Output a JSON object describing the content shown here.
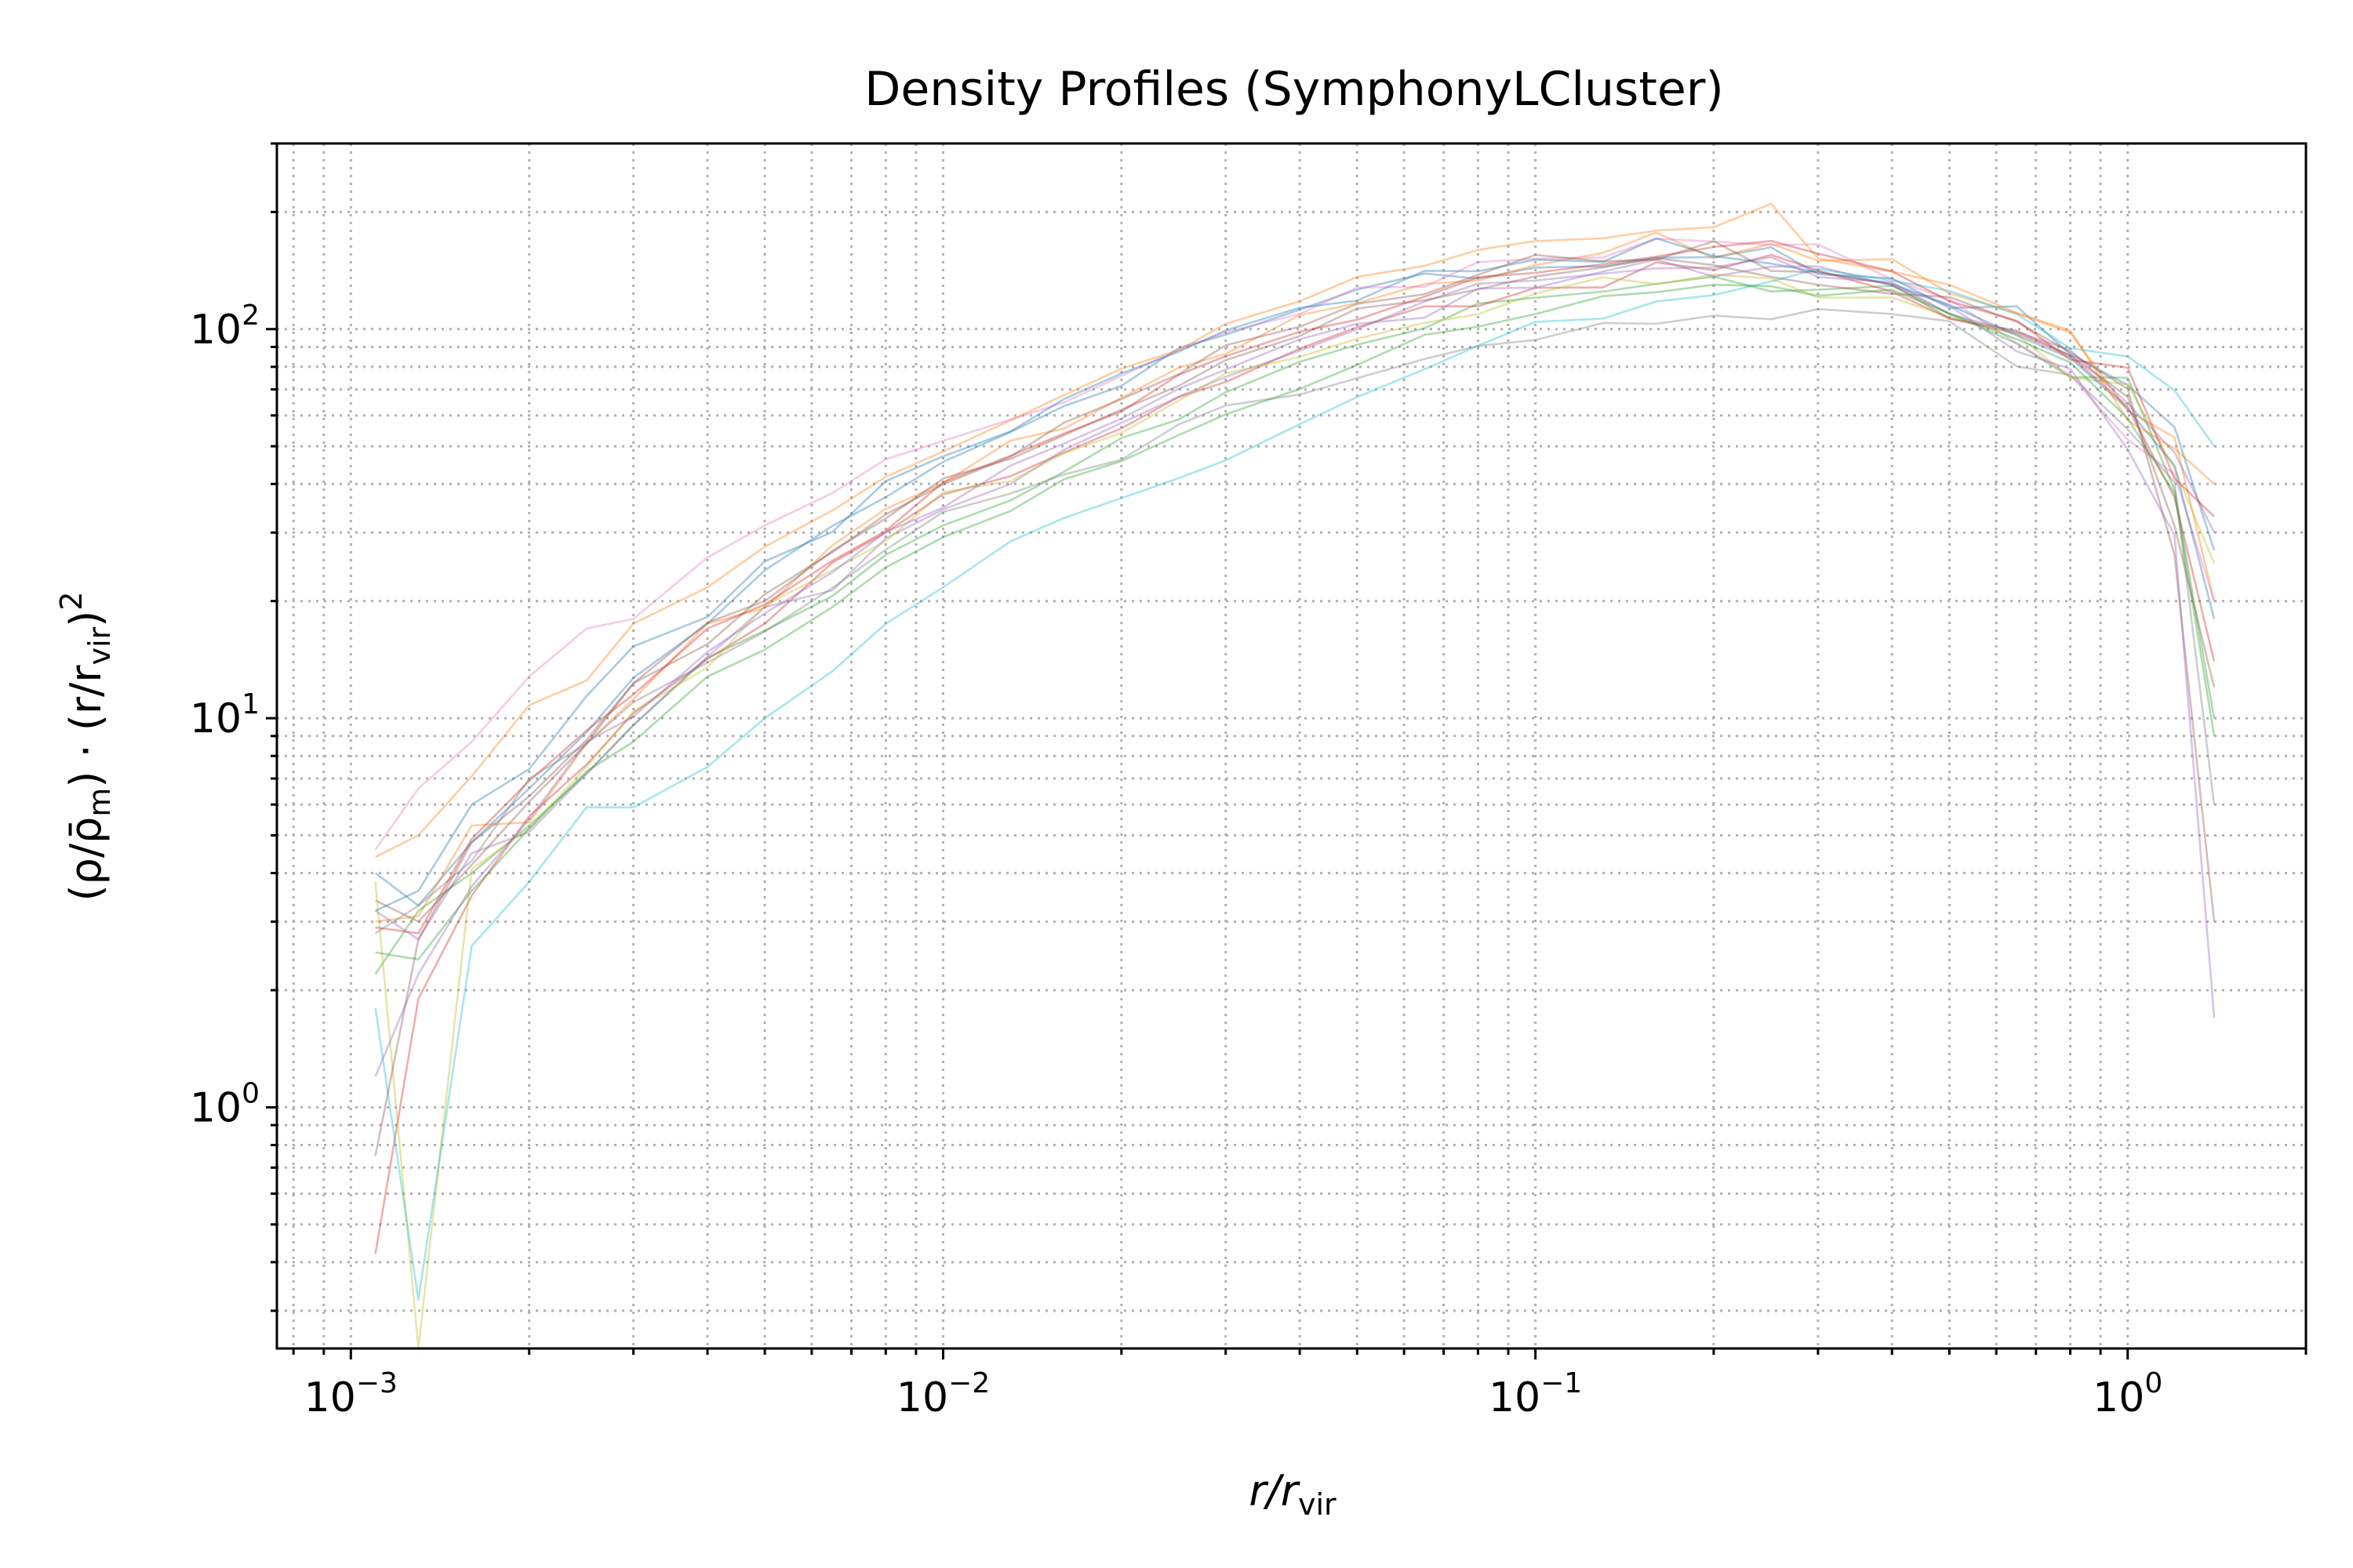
{
  "chart_data": {
    "type": "line",
    "title": "Density Profiles (SymphonyLCluster)",
    "xlabel": "r/r_vir",
    "xlabel_main": "r/r",
    "xlabel_sub": "vir",
    "ylabel": "(ρ/ρ̄_m)·(r/r_vir)²",
    "ylabel_parts": {
      "open": "(ρ/ρ̄",
      "m_sub": "m",
      "mid": ") · (r/r",
      "vir_sub": "vir",
      "close": ")",
      "sq": "2"
    },
    "xscale": "log",
    "yscale": "log",
    "xlim": [
      0.00075,
      2.0
    ],
    "ylim": [
      0.24,
      300
    ],
    "grid": true,
    "xticks": [
      {
        "value": 0.001,
        "base": "10",
        "exp": "−3"
      },
      {
        "value": 0.01,
        "base": "10",
        "exp": "−2"
      },
      {
        "value": 0.1,
        "base": "10",
        "exp": "−1"
      },
      {
        "value": 1,
        "base": "10",
        "exp": "0"
      }
    ],
    "yticks": [
      {
        "value": 1,
        "base": "10",
        "exp": "0"
      },
      {
        "value": 10,
        "base": "10",
        "exp": "1"
      },
      {
        "value": 100,
        "base": "10",
        "exp": "2"
      }
    ],
    "colors": [
      "#1f77b4",
      "#ff7f0e",
      "#2ca02c",
      "#d62728",
      "#9467bd",
      "#8c564b",
      "#e377c2",
      "#7f7f7f",
      "#bcbd22",
      "#17becf"
    ],
    "series": [
      {
        "x": [
          0.0011,
          0.0013,
          0.0016,
          0.002,
          0.0025,
          0.003,
          0.004,
          0.005,
          0.0065,
          0.008,
          0.01,
          0.013,
          0.016,
          0.02,
          0.025,
          0.03,
          0.04,
          0.05,
          0.065,
          0.08,
          0.1,
          0.13,
          0.16,
          0.2,
          0.25,
          0.3,
          0.4,
          0.5,
          0.65,
          0.8,
          1.0,
          1.2,
          1.4
        ],
        "y": [
          4.0,
          3.3,
          4.8,
          6.6,
          9.2,
          12.7,
          17.5,
          24.0,
          31.2,
          37.0,
          45.6,
          54.4,
          63.4,
          71.5,
          89.4,
          96.7,
          112.2,
          126.4,
          139.0,
          134.8,
          144.0,
          145.0,
          152.6,
          153.0,
          162.2,
          138.4,
          135.1,
          113.4,
          114.4,
          86.2,
          71.8,
          56.0,
          27.0
        ]
      },
      {
        "x": [
          0.0011,
          0.0013,
          0.0016,
          0.002,
          0.0025,
          0.003,
          0.004,
          0.005,
          0.0065,
          0.008,
          0.01,
          0.013,
          0.016,
          0.02,
          0.025,
          0.03,
          0.04,
          0.05,
          0.065,
          0.08,
          0.1,
          0.13,
          0.16,
          0.2,
          0.25,
          0.3,
          0.4,
          0.5,
          0.65,
          0.8,
          1.0,
          1.2,
          1.4
        ],
        "y": [
          3.0,
          3.1,
          5.3,
          5.4,
          8.6,
          11.2,
          17.5,
          19.2,
          27.8,
          34.5,
          40.2,
          51.7,
          55.5,
          66.6,
          79.6,
          86.4,
          108.6,
          116.6,
          130.7,
          133.2,
          146.1,
          157.0,
          177.0,
          152.2,
          165.9,
          149.8,
          151.3,
          123.7,
          109.7,
          98.0,
          61.7,
          52.7,
          20.0
        ]
      },
      {
        "x": [
          0.0011,
          0.0013,
          0.0016,
          0.002,
          0.0025,
          0.003,
          0.004,
          0.005,
          0.0065,
          0.008,
          0.01,
          0.013,
          0.016,
          0.02,
          0.025,
          0.03,
          0.04,
          0.05,
          0.065,
          0.08,
          0.1,
          0.13,
          0.16,
          0.2,
          0.25,
          0.3,
          0.4,
          0.5,
          0.65,
          0.8,
          1.0,
          1.2,
          1.4
        ],
        "y": [
          2.2,
          3.2,
          4.0,
          5.3,
          7.2,
          9.6,
          14.3,
          16.8,
          20.6,
          26.3,
          31.3,
          36.3,
          43.0,
          52.5,
          58.6,
          68.8,
          82.4,
          91.2,
          100.5,
          116.3,
          120.4,
          124.9,
          130.7,
          136.4,
          125.0,
          126.3,
          129.2,
          109.7,
          91.8,
          75.2,
          75.0,
          38.6,
          10.0
        ]
      },
      {
        "x": [
          0.0011,
          0.0013,
          0.0016,
          0.002,
          0.0025,
          0.003,
          0.004,
          0.005,
          0.0065,
          0.008,
          0.01,
          0.013,
          0.016,
          0.02,
          0.025,
          0.03,
          0.04,
          0.05,
          0.065,
          0.08,
          0.1,
          0.13,
          0.16,
          0.2,
          0.25,
          0.3,
          0.4,
          0.5,
          0.65,
          0.8,
          1.0,
          1.2,
          1.4
        ],
        "y": [
          0.42,
          1.9,
          3.5,
          5.6,
          7.6,
          10.3,
          14.2,
          17.5,
          25.1,
          30.0,
          37.6,
          41.9,
          48.2,
          55.6,
          66.9,
          73.1,
          89.1,
          101.1,
          114.4,
          114.5,
          127.7,
          128.0,
          148.4,
          141.8,
          155.2,
          141.5,
          124.8,
          106.4,
          97.6,
          85.5,
          63.2,
          36.9,
          14.0
        ]
      },
      {
        "x": [
          0.0011,
          0.0013,
          0.0016,
          0.002,
          0.0025,
          0.003,
          0.004,
          0.005,
          0.0065,
          0.008,
          0.01,
          0.013,
          0.016,
          0.02,
          0.025,
          0.03,
          0.04,
          0.05,
          0.065,
          0.08,
          0.1,
          0.13,
          0.16,
          0.2,
          0.25,
          0.3,
          0.4,
          0.5,
          0.65,
          0.8,
          1.0,
          1.2,
          1.4
        ],
        "y": [
          3.2,
          2.7,
          4.5,
          5.1,
          7.2,
          9.6,
          14.4,
          19.3,
          21.3,
          29.0,
          34.4,
          40.0,
          49.0,
          57.4,
          67.0,
          75.4,
          88.0,
          99.9,
          117.7,
          130.8,
          133.3,
          138.9,
          143.3,
          144.0,
          153.1,
          136.1,
          132.0,
          109.3,
          98.3,
          88.4,
          64.4,
          48.2,
          30.0
        ]
      },
      {
        "x": [
          0.0011,
          0.0013,
          0.0016,
          0.002,
          0.0025,
          0.003,
          0.004,
          0.005,
          0.0065,
          0.008,
          0.01,
          0.013,
          0.016,
          0.02,
          0.025,
          0.03,
          0.04,
          0.05,
          0.065,
          0.08,
          0.1,
          0.13,
          0.16,
          0.2,
          0.25,
          0.3,
          0.4,
          0.5,
          0.65,
          0.8,
          1.0,
          1.2,
          1.4
        ],
        "y": [
          3.4,
          3.0,
          4.2,
          6.1,
          8.6,
          12.3,
          17.6,
          20.0,
          26.9,
          32.6,
          41.3,
          46.4,
          53.4,
          62.1,
          71.5,
          83.2,
          96.0,
          113.0,
          118.6,
          126.6,
          136.6,
          144.1,
          152.2,
          146.0,
          136.2,
          130.0,
          123.2,
          120.9,
          104.4,
          87.2,
          70.2,
          26.2,
          3.0
        ]
      },
      {
        "x": [
          0.0011,
          0.0013,
          0.0016,
          0.002,
          0.0025,
          0.003,
          0.004,
          0.005,
          0.0065,
          0.008,
          0.01,
          0.013,
          0.016,
          0.02,
          0.025,
          0.03,
          0.04,
          0.05,
          0.065,
          0.08,
          0.1,
          0.13,
          0.16,
          0.2,
          0.25,
          0.3,
          0.4,
          0.5,
          0.65,
          0.8,
          1.0,
          1.2,
          1.4
        ],
        "y": [
          4.6,
          6.6,
          8.7,
          12.8,
          17.0,
          18.0,
          25.9,
          31.3,
          37.9,
          46.3,
          51.6,
          58.6,
          64.8,
          75.8,
          88.4,
          98.1,
          109.4,
          127.9,
          128.5,
          148.7,
          151.6,
          152.8,
          170.7,
          168.0,
          164.4,
          165.2,
          134.2,
          119.2,
          92.0,
          76.2,
          52.0,
          42.3,
          20.0
        ]
      },
      {
        "x": [
          0.0011,
          0.0013,
          0.0016,
          0.002,
          0.0025,
          0.003,
          0.004,
          0.005,
          0.0065,
          0.008,
          0.01,
          0.013,
          0.016,
          0.02,
          0.025,
          0.03,
          0.04,
          0.05,
          0.065,
          0.08,
          0.1,
          0.13,
          0.16,
          0.2,
          0.25,
          0.3,
          0.4,
          0.5,
          0.65,
          0.8,
          1.0,
          1.2,
          1.4
        ],
        "y": [
          2.8,
          3.3,
          4.3,
          7.0,
          8.6,
          11.0,
          13.9,
          16.7,
          21.6,
          27.1,
          33.9,
          37.8,
          42.3,
          46.2,
          56.9,
          63.6,
          67.9,
          74.8,
          83.8,
          90.5,
          93.8,
          103.7,
          103.2,
          108.3,
          106.0,
          112.6,
          109.3,
          104.8,
          80.2,
          76.3,
          55.3,
          40.4,
          6.0
        ]
      },
      {
        "x": [
          0.0011,
          0.0013,
          0.0016,
          0.002,
          0.0025,
          0.003,
          0.004,
          0.005,
          0.0065,
          0.008,
          0.01,
          0.013,
          0.016,
          0.02,
          0.025,
          0.03,
          0.04,
          0.05,
          0.065,
          0.08,
          0.1,
          0.13,
          0.16,
          0.2,
          0.25,
          0.3,
          0.4,
          0.5,
          0.65,
          0.8,
          1.0,
          1.2,
          1.4
        ],
        "y": [
          3.8,
          0.24,
          4.1,
          5.2,
          7.5,
          10.4,
          13.5,
          19.5,
          24.0,
          28.5,
          38.1,
          40.7,
          48.0,
          54.1,
          65.5,
          76.9,
          84.8,
          94.5,
          103.8,
          109.2,
          123.4,
          135.9,
          130.4,
          138.1,
          134.9,
          120.5,
          120.5,
          107.6,
          96.9,
          75.0,
          72.1,
          43.8,
          25.0
        ]
      },
      {
        "x": [
          0.0011,
          0.0013,
          0.0016,
          0.002,
          0.0025,
          0.003,
          0.004,
          0.005,
          0.0065,
          0.008,
          0.01,
          0.013,
          0.016,
          0.02,
          0.025,
          0.03,
          0.04,
          0.05,
          0.065,
          0.08,
          0.1,
          0.13,
          0.16,
          0.2,
          0.25,
          0.3,
          0.4,
          0.5,
          0.65,
          0.8,
          1.0,
          1.2,
          1.4
        ],
        "y": [
          1.8,
          0.32,
          2.6,
          3.8,
          5.9,
          5.9,
          7.5,
          10.0,
          13.2,
          17.5,
          21.7,
          28.5,
          32.7,
          36.8,
          41.4,
          46.0,
          57.0,
          66.9,
          78.9,
          90.6,
          104.4,
          106.4,
          117.8,
          122.3,
          132.6,
          142.8,
          133.3,
          125.4,
          109.2,
          89.3,
          85.1,
          69.6,
          50.0
        ]
      },
      {
        "x": [
          0.0011,
          0.0013,
          0.0016,
          0.002,
          0.0025,
          0.003,
          0.004,
          0.005,
          0.0065,
          0.008,
          0.01,
          0.013,
          0.016,
          0.02,
          0.025,
          0.03,
          0.04,
          0.05,
          0.065,
          0.08,
          0.1,
          0.13,
          0.16,
          0.2,
          0.25,
          0.3,
          0.4,
          0.5,
          0.65,
          0.8,
          1.0,
          1.2,
          1.4
        ],
        "y": [
          3.2,
          3.6,
          6.0,
          7.4,
          11.4,
          15.3,
          18.2,
          25.3,
          30.1,
          40.7,
          47.1,
          54.6,
          66.1,
          76.9,
          87.5,
          99.2,
          113.5,
          118.4,
          141.2,
          140.8,
          150.9,
          148.9,
          171.1,
          154.0,
          147.4,
          140.1,
          130.7,
          115.4,
          96.3,
          84.4,
          62.4,
          44.6,
          18.0
        ]
      },
      {
        "x": [
          0.0011,
          0.0013,
          0.0016,
          0.002,
          0.0025,
          0.003,
          0.004,
          0.005,
          0.0065,
          0.008,
          0.01,
          0.013,
          0.016,
          0.02,
          0.025,
          0.03,
          0.04,
          0.05,
          0.065,
          0.08,
          0.1,
          0.13,
          0.16,
          0.2,
          0.25,
          0.3,
          0.4,
          0.5,
          0.65,
          0.8,
          1.0,
          1.2,
          1.4
        ],
        "y": [
          4.4,
          5.0,
          7.1,
          10.8,
          12.5,
          17.5,
          21.7,
          27.6,
          34.2,
          41.7,
          48.5,
          58.3,
          67.7,
          79.2,
          88.3,
          103.2,
          117.9,
          136.2,
          145.4,
          159.8,
          168.4,
          171.1,
          179.2,
          182.8,
          210.0,
          151.9,
          140.7,
          130.0,
          110.2,
          99.1,
          58.3,
          49.3,
          40.0
        ]
      },
      {
        "x": [
          0.0011,
          0.0013,
          0.0016,
          0.002,
          0.0025,
          0.003,
          0.004,
          0.005,
          0.0065,
          0.008,
          0.01,
          0.013,
          0.016,
          0.02,
          0.025,
          0.03,
          0.04,
          0.05,
          0.065,
          0.08,
          0.1,
          0.13,
          0.16,
          0.2,
          0.25,
          0.3,
          0.4,
          0.5,
          0.65,
          0.8,
          1.0,
          1.2,
          1.4
        ],
        "y": [
          2.5,
          2.4,
          3.6,
          5.2,
          7.3,
          8.7,
          12.8,
          15.0,
          19.3,
          24.4,
          29.2,
          34.1,
          41.1,
          45.8,
          53.4,
          60.4,
          70.2,
          80.9,
          96.7,
          101.5,
          109.3,
          121.5,
          124.4,
          130.0,
          128.9,
          121.8,
          126.2,
          109.6,
          94.2,
          82.1,
          59.0,
          37.8,
          9.0
        ]
      },
      {
        "x": [
          0.0011,
          0.0013,
          0.0016,
          0.002,
          0.0025,
          0.003,
          0.004,
          0.005,
          0.0065,
          0.008,
          0.01,
          0.013,
          0.016,
          0.02,
          0.025,
          0.03,
          0.04,
          0.05,
          0.065,
          0.08,
          0.1,
          0.13,
          0.16,
          0.2,
          0.25,
          0.3,
          0.4,
          0.5,
          0.65,
          0.8,
          1.0,
          1.2,
          1.4
        ],
        "y": [
          2.9,
          2.8,
          4.9,
          6.9,
          9.3,
          11.5,
          17.0,
          19.6,
          25.4,
          30.3,
          40.4,
          47.3,
          53.9,
          61.4,
          76.3,
          85.2,
          98.5,
          105.7,
          121.2,
          136.0,
          139.5,
          146.8,
          153.6,
          162.5,
          168.5,
          156.3,
          140.7,
          118.0,
          105.1,
          83.4,
          79.6,
          41.3,
          33.0
        ]
      },
      {
        "x": [
          0.0011,
          0.0013,
          0.0016,
          0.002,
          0.0025,
          0.003,
          0.004,
          0.005,
          0.0065,
          0.008,
          0.01,
          0.013,
          0.016,
          0.02,
          0.025,
          0.03,
          0.04,
          0.05,
          0.065,
          0.08,
          0.1,
          0.13,
          0.16,
          0.2,
          0.25,
          0.3,
          0.4,
          0.5,
          0.65,
          0.8,
          1.0,
          1.2,
          1.4
        ],
        "y": [
          1.2,
          2.2,
          3.7,
          5.5,
          8.7,
          10.1,
          14.8,
          18.6,
          23.7,
          30.1,
          34.8,
          44.6,
          50.8,
          58.9,
          70.3,
          78.7,
          94.2,
          103.2,
          107.0,
          127.1,
          127.8,
          140.6,
          150.9,
          136.5,
          144.7,
          145.0,
          129.4,
          114.9,
          87.6,
          79.1,
          49.1,
          29.5,
          1.7
        ]
      },
      {
        "x": [
          0.0011,
          0.0013,
          0.0016,
          0.002,
          0.0025,
          0.003,
          0.004,
          0.005,
          0.0065,
          0.008,
          0.01,
          0.013,
          0.016,
          0.02,
          0.025,
          0.03,
          0.04,
          0.05,
          0.065,
          0.08,
          0.1,
          0.13,
          0.16,
          0.2,
          0.25,
          0.3,
          0.4,
          0.5,
          0.65,
          0.8,
          1.0,
          1.2,
          1.4
        ],
        "y": [
          0.75,
          2.7,
          4.8,
          6.3,
          8.8,
          12.3,
          15.5,
          20.8,
          26.7,
          33.4,
          39.9,
          47.0,
          57.5,
          66.1,
          76.6,
          90.9,
          101.4,
          116.1,
          123.0,
          137.9,
          155.1,
          149.4,
          150.8,
          168.1,
          141.1,
          140.1,
          130.2,
          106.5,
          99.1,
          85.6,
          67.0,
          31.2,
          12.0
        ]
      }
    ]
  }
}
